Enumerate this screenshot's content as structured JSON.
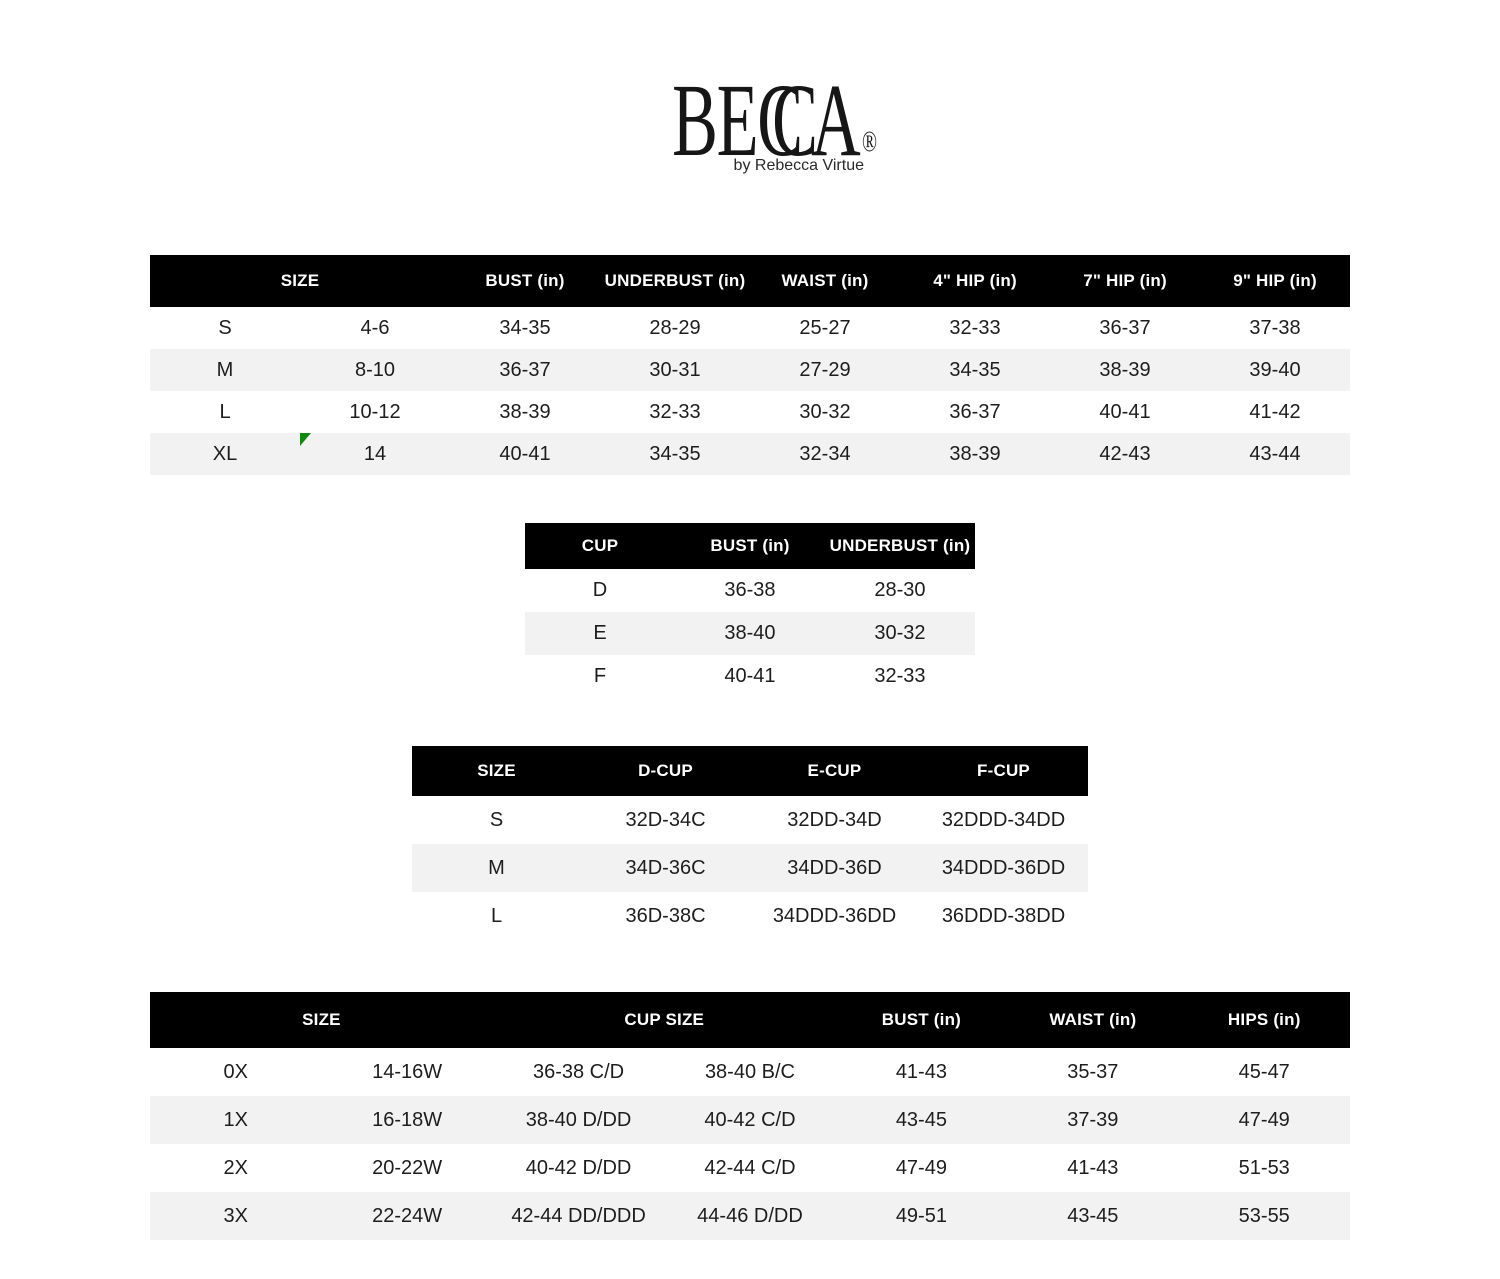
{
  "logo": {
    "name": "BECCA",
    "part1": "BE",
    "part2": "C",
    "part3": "C",
    "part4": "A",
    "registered": "®",
    "tagline": "by Rebecca Virtue"
  },
  "colors": {
    "page_bg": "#ffffff",
    "header_bg": "#000000",
    "header_text": "#ffffff",
    "row_alt": "#f2f2f2",
    "body_text": "#1d1d1d",
    "marker_green": "#0f8a0f",
    "marker_green_dark": "#0a5c0a"
  },
  "tables": {
    "sizes": {
      "id": "standard-size-chart",
      "col_count": 8,
      "headers": [
        {
          "label": "SIZE",
          "span": 2
        },
        {
          "label": "BUST (in)",
          "span": 1
        },
        {
          "label": "UNDERBUST (in)",
          "span": 1
        },
        {
          "label": "WAIST (in)",
          "span": 1
        },
        {
          "label": "4\" HIP (in)",
          "span": 1
        },
        {
          "label": "7\" HIP (in)",
          "span": 1
        },
        {
          "label": "9\" HIP (in)",
          "span": 1
        }
      ],
      "rows": [
        [
          "S",
          "4-6",
          "34-35",
          "28-29",
          "25-27",
          "32-33",
          "36-37",
          "37-38"
        ],
        [
          "M",
          "8-10",
          "36-37",
          "30-31",
          "27-29",
          "34-35",
          "38-39",
          "39-40"
        ],
        [
          "L",
          "10-12",
          "38-39",
          "32-33",
          "30-32",
          "36-37",
          "40-41",
          "41-42"
        ],
        [
          "XL",
          "14",
          "40-41",
          "34-35",
          "32-34",
          "38-39",
          "42-43",
          "43-44"
        ]
      ]
    },
    "cups": {
      "id": "cup-measurement-chart",
      "col_count": 3,
      "headers": [
        {
          "label": "CUP",
          "span": 1
        },
        {
          "label": "BUST (in)",
          "span": 1
        },
        {
          "label": "UNDERBUST (in)",
          "span": 1
        }
      ],
      "rows": [
        [
          "D",
          "36-38",
          "28-30"
        ],
        [
          "E",
          "38-40",
          "30-32"
        ],
        [
          "F",
          "40-41",
          "32-33"
        ]
      ]
    },
    "cup_sizes": {
      "id": "cup-size-chart",
      "col_count": 4,
      "headers": [
        {
          "label": "SIZE",
          "span": 1
        },
        {
          "label": "D-CUP",
          "span": 1
        },
        {
          "label": "E-CUP",
          "span": 1
        },
        {
          "label": "F-CUP",
          "span": 1
        }
      ],
      "rows": [
        [
          "S",
          "32D-34C",
          "32DD-34D",
          "32DDD-34DD"
        ],
        [
          "M",
          "34D-36C",
          "34DD-36D",
          "34DDD-36DD"
        ],
        [
          "L",
          "36D-38C",
          "34DDD-36DD",
          "36DDD-38DD"
        ]
      ]
    },
    "plus": {
      "id": "plus-size-chart",
      "col_count": 7,
      "headers": [
        {
          "label": "SIZE",
          "span": 2
        },
        {
          "label": "CUP SIZE",
          "span": 2
        },
        {
          "label": "BUST (in)",
          "span": 1
        },
        {
          "label": "WAIST (in)",
          "span": 1
        },
        {
          "label": "HIPS (in)",
          "span": 1
        }
      ],
      "rows": [
        [
          "0X",
          "14-16W",
          "36-38 C/D",
          "38-40 B/C",
          "41-43",
          "35-37",
          "45-47"
        ],
        [
          "1X",
          "16-18W",
          "38-40 D/DD",
          "40-42 C/D",
          "43-45",
          "37-39",
          "47-49"
        ],
        [
          "2X",
          "20-22W",
          "40-42 D/DD",
          "42-44 C/D",
          "47-49",
          "41-43",
          "51-53"
        ],
        [
          "3X",
          "22-24W",
          "42-44 DD/DDD",
          "44-46 D/DD",
          "49-51",
          "43-45",
          "53-55"
        ]
      ]
    }
  }
}
